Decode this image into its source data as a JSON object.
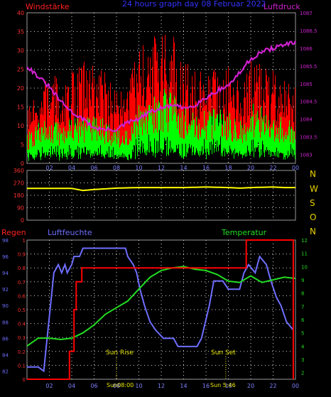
{
  "panels": {
    "top": {
      "left_label": "Windstärke",
      "right_label": "Luftdruck",
      "title": "24 hours graph day 08 Februar 2022"
    },
    "middle": {
      "compass": [
        "N",
        "W",
        "S",
        "O",
        "N"
      ]
    },
    "bottom": {
      "left_label": "Regen",
      "mid_label": "Luftfeuchte",
      "right_label": "Temperatur",
      "sunrise_label": "Sun Rise",
      "sunset_label": "Sun Set",
      "sunrise_time": "Sun08:00",
      "sunset_time": "Sun 5:46"
    }
  },
  "colors": {
    "wind_gust": "#ff0000",
    "wind_avg": "#00ff00",
    "pressure": "#d020d0",
    "direction": "#ffff00",
    "rain": "#ff0000",
    "humidity": "#6e6eff",
    "temperature": "#22dd22",
    "title": "#3333ff",
    "grid": "#d8d8d8",
    "compass": "#e8d000"
  },
  "chart_data": [
    {
      "type": "line",
      "title": "24 hours graph day 08 Februar 2022",
      "x_ticks": [
        "02",
        "04",
        "06",
        "08",
        "10",
        "12",
        "14",
        "16",
        "18",
        "20",
        "22",
        "00"
      ],
      "x_hours": [
        0,
        1,
        2,
        3,
        4,
        5,
        6,
        7,
        8,
        9,
        10,
        11,
        12,
        13,
        14,
        15,
        16,
        17,
        18,
        19,
        20,
        21,
        22,
        23,
        24
      ],
      "ylabel_left": "Windstärke",
      "ylim_left": [
        0,
        40
      ],
      "y_ticks_left": [
        "0",
        "5",
        "10",
        "15",
        "20",
        "25",
        "30",
        "35",
        "40"
      ],
      "ylabel_right": "Luftdruck",
      "ylim_right": [
        1082.75,
        1087
      ],
      "y_ticks_right": [
        "1083",
        "1083.5",
        "1084",
        "1084.5",
        "1085",
        "1085.5",
        "1086",
        "1086.5",
        "1087"
      ],
      "grid": true,
      "series": [
        {
          "name": "Windstärke",
          "axis": "left",
          "role": "gust",
          "values": [
            10,
            13,
            17,
            15,
            17,
            19,
            18,
            17,
            13,
            15,
            21,
            23,
            25,
            24,
            19,
            17,
            18,
            18,
            18,
            16,
            20,
            19,
            17,
            16,
            14
          ]
        },
        {
          "name": "Windstärke",
          "axis": "left",
          "role": "average",
          "values": [
            6,
            8,
            9,
            8,
            9,
            10,
            10,
            9,
            7,
            8,
            12,
            13,
            15,
            14,
            11,
            10,
            11,
            11,
            11,
            9,
            12,
            11,
            10,
            9,
            9
          ]
        },
        {
          "name": "Luftdruck",
          "axis": "right",
          "role": "pressure",
          "values": [
            1085.5,
            1085.2,
            1084.9,
            1084.5,
            1084.2,
            1084.0,
            1083.75,
            1083.7,
            1083.7,
            1083.9,
            1084.0,
            1084.2,
            1084.3,
            1084.4,
            1084.3,
            1084.4,
            1084.6,
            1084.8,
            1084.95,
            1085.3,
            1085.7,
            1085.9,
            1086.0,
            1086.1,
            1086.15
          ]
        }
      ]
    },
    {
      "type": "line",
      "ylim": [
        0,
        360
      ],
      "y_ticks": [
        "0",
        "90",
        "180",
        "270",
        "360"
      ],
      "x_hours": [
        0,
        2,
        4,
        5,
        6,
        8,
        10,
        12,
        14,
        16,
        18,
        19,
        20,
        22,
        23,
        24
      ],
      "series": [
        {
          "name": "Windrichtung",
          "values": [
            230,
            230,
            230,
            215,
            222,
            232,
            236,
            236,
            236,
            240,
            236,
            232,
            236,
            240,
            236,
            236
          ]
        }
      ]
    },
    {
      "type": "line",
      "x_ticks": [
        "02",
        "04",
        "06",
        "08",
        "10",
        "12",
        "14",
        "16",
        "18",
        "20",
        "22",
        "00"
      ],
      "ylabel_left": "Regen",
      "ylim_rain": [
        0,
        1
      ],
      "y_ticks_rain": [
        "0",
        "0.1",
        "0.2",
        "0.3",
        "0.4",
        "0.5",
        "0.6",
        "0.7",
        "0.8",
        "0.9",
        "1"
      ],
      "ylabel_humidity": "Luftfeuchte",
      "ylim_humidity": [
        81,
        98
      ],
      "y_ticks_humidity": [
        "82",
        "84",
        "86",
        "88",
        "90",
        "92",
        "94",
        "96",
        "98"
      ],
      "ylabel_right": "Temperatur",
      "ylim_temp": [
        1.5,
        12
      ],
      "y_ticks_temp": [
        "2",
        "3",
        "4",
        "5",
        "6",
        "7",
        "8",
        "9",
        "10",
        "11",
        "12"
      ],
      "grid": true,
      "series": [
        {
          "name": "Regen",
          "points": [
            [
              0,
              0
            ],
            [
              3.8,
              0
            ],
            [
              3.8,
              0.2
            ],
            [
              4.2,
              0.2
            ],
            [
              4.2,
              0.5
            ],
            [
              4.4,
              0.5
            ],
            [
              4.4,
              0.7
            ],
            [
              4.9,
              0.7
            ],
            [
              4.9,
              0.8
            ],
            [
              19.6,
              0.8
            ],
            [
              19.6,
              1
            ],
            [
              23.8,
              1
            ],
            [
              23.8,
              0
            ]
          ]
        },
        {
          "name": "Luftfeuchte",
          "points": [
            [
              0,
              82.5
            ],
            [
              1.0,
              82.5
            ],
            [
              1.5,
              82
            ],
            [
              1.8,
              86
            ],
            [
              2.1,
              90
            ],
            [
              2.4,
              94
            ],
            [
              2.8,
              95
            ],
            [
              3.1,
              94
            ],
            [
              3.4,
              95
            ],
            [
              3.6,
              94
            ],
            [
              4.0,
              95
            ],
            [
              4.2,
              96
            ],
            [
              4.7,
              96
            ],
            [
              5.0,
              97
            ],
            [
              8.8,
              97
            ],
            [
              9.0,
              96
            ],
            [
              9.5,
              95
            ],
            [
              9.8,
              94
            ],
            [
              10.1,
              92
            ],
            [
              10.5,
              90
            ],
            [
              11.0,
              88
            ],
            [
              11.5,
              87
            ],
            [
              12.2,
              86
            ],
            [
              13.1,
              86
            ],
            [
              13.5,
              85
            ],
            [
              15.2,
              85
            ],
            [
              15.6,
              86
            ],
            [
              16.3,
              90
            ],
            [
              16.7,
              93
            ],
            [
              17.5,
              93
            ],
            [
              18.0,
              92
            ],
            [
              19.0,
              92
            ],
            [
              19.4,
              94
            ],
            [
              19.8,
              95
            ],
            [
              20.4,
              94
            ],
            [
              20.8,
              96
            ],
            [
              21.4,
              95
            ],
            [
              21.8,
              93
            ],
            [
              22.3,
              91
            ],
            [
              22.7,
              90
            ],
            [
              23.2,
              88
            ],
            [
              23.8,
              87
            ]
          ]
        },
        {
          "name": "Temperatur",
          "points": [
            [
              0,
              4.0
            ],
            [
              0.5,
              4.3
            ],
            [
              1.0,
              4.6
            ],
            [
              2.0,
              4.6
            ],
            [
              3.0,
              4.5
            ],
            [
              4.0,
              4.6
            ],
            [
              5.0,
              5.0
            ],
            [
              6.0,
              5.6
            ],
            [
              7.0,
              6.4
            ],
            [
              8.0,
              6.9
            ],
            [
              9.0,
              7.4
            ],
            [
              10.0,
              8.3
            ],
            [
              11.0,
              9.2
            ],
            [
              12.0,
              9.7
            ],
            [
              13.0,
              9.9
            ],
            [
              14.0,
              10.0
            ],
            [
              15.0,
              9.8
            ],
            [
              16.0,
              9.7
            ],
            [
              17.0,
              9.4
            ],
            [
              18.0,
              8.9
            ],
            [
              19.0,
              8.8
            ],
            [
              20.0,
              9.3
            ],
            [
              21.0,
              8.8
            ],
            [
              22.0,
              9.0
            ],
            [
              23.0,
              9.2
            ],
            [
              24.0,
              9.1
            ]
          ]
        }
      ],
      "annotations": [
        {
          "text": "Sun Rise",
          "x_hour": 8.0
        },
        {
          "text": "Sun Set",
          "x_hour": 17.77
        }
      ]
    }
  ]
}
